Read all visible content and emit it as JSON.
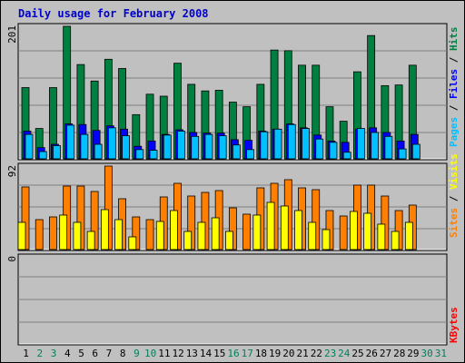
{
  "chart_data": {
    "type": "bar",
    "title": "Daily usage for February 2008",
    "days": [
      "1",
      "2",
      "3",
      "4",
      "5",
      "6",
      "7",
      "8",
      "9",
      "10",
      "11",
      "12",
      "13",
      "14",
      "15",
      "16",
      "17",
      "18",
      "19",
      "20",
      "21",
      "22",
      "23",
      "24",
      "25",
      "26",
      "27",
      "28",
      "29",
      "30",
      "31"
    ],
    "weekend_days": [
      "2",
      "3",
      "9",
      "10",
      "16",
      "17",
      "23",
      "24",
      "30",
      "31"
    ],
    "panels": [
      {
        "id": "hits-files-pages",
        "ymax_label": "201",
        "ymax": 201,
        "legend": [
          "Pages",
          "Files",
          "Hits"
        ],
        "series": [
          {
            "name": "Hits",
            "color": "#008040",
            "values": [
              108,
              46,
              108,
              201,
              143,
              118,
              151,
              137,
              67,
              98,
              95,
              145,
              113,
              103,
              104,
              86,
              79,
              113,
              165,
              164,
              142,
              142,
              79,
              57,
              132,
              187,
              111,
              112,
              142,
              0,
              0
            ]
          },
          {
            "name": "Files",
            "color": "#0000ff",
            "values": [
              42,
              17,
              22,
              53,
              52,
              43,
              50,
              45,
              19,
              27,
              37,
              44,
              40,
              39,
              39,
              29,
              28,
              42,
              45,
              53,
              47,
              36,
              27,
              25,
              45,
              47,
              40,
              27,
              37,
              0,
              0
            ]
          },
          {
            "name": "Pages",
            "color": "#00c0ff",
            "values": [
              37,
              11,
              20,
              51,
              37,
              22,
              47,
              35,
              14,
              13,
              36,
              42,
              34,
              37,
              35,
              21,
              14,
              41,
              45,
              52,
              46,
              30,
              25,
              10,
              46,
              40,
              34,
              15,
              22,
              0,
              0
            ]
          }
        ]
      },
      {
        "id": "visits-sites",
        "ymax_label": "92",
        "ymax": 92,
        "legend": [
          "Sites",
          "Visits"
        ],
        "series": [
          {
            "name": "Sites",
            "color": "#ff8000",
            "values": [
              69,
              33,
              36,
              70,
              70,
              64,
              92,
              56,
              36,
              33,
              58,
              73,
              59,
              63,
              65,
              46,
              39,
              68,
              73,
              77,
              68,
              66,
              43,
              37,
              71,
              71,
              59,
              43,
              49,
              0,
              0
            ]
          },
          {
            "name": "Visits",
            "color": "#ffff00",
            "values": [
              30,
              0,
              0,
              38,
              30,
              20,
              44,
              33,
              14,
              0,
              31,
              43,
              20,
              30,
              35,
              20,
              0,
              38,
              52,
              48,
              43,
              30,
              22,
              0,
              42,
              40,
              28,
              20,
              30,
              0,
              0
            ]
          }
        ]
      },
      {
        "id": "kbytes",
        "ymax_label": "0",
        "ymax": 0,
        "legend": [
          "KBytes"
        ],
        "series": [
          {
            "name": "KBytes",
            "color": "#ff0000",
            "values": [
              0,
              0,
              0,
              0,
              0,
              0,
              0,
              0,
              0,
              0,
              0,
              0,
              0,
              0,
              0,
              0,
              0,
              0,
              0,
              0,
              0,
              0,
              0,
              0,
              0,
              0,
              0,
              0,
              0,
              0,
              0
            ]
          }
        ]
      }
    ]
  },
  "colors": {
    "background": "#c0c0c0",
    "weekday_label": "#000000",
    "weekend_label": "#00805c",
    "title": "#0000cc",
    "legend_separator": "#000000"
  }
}
